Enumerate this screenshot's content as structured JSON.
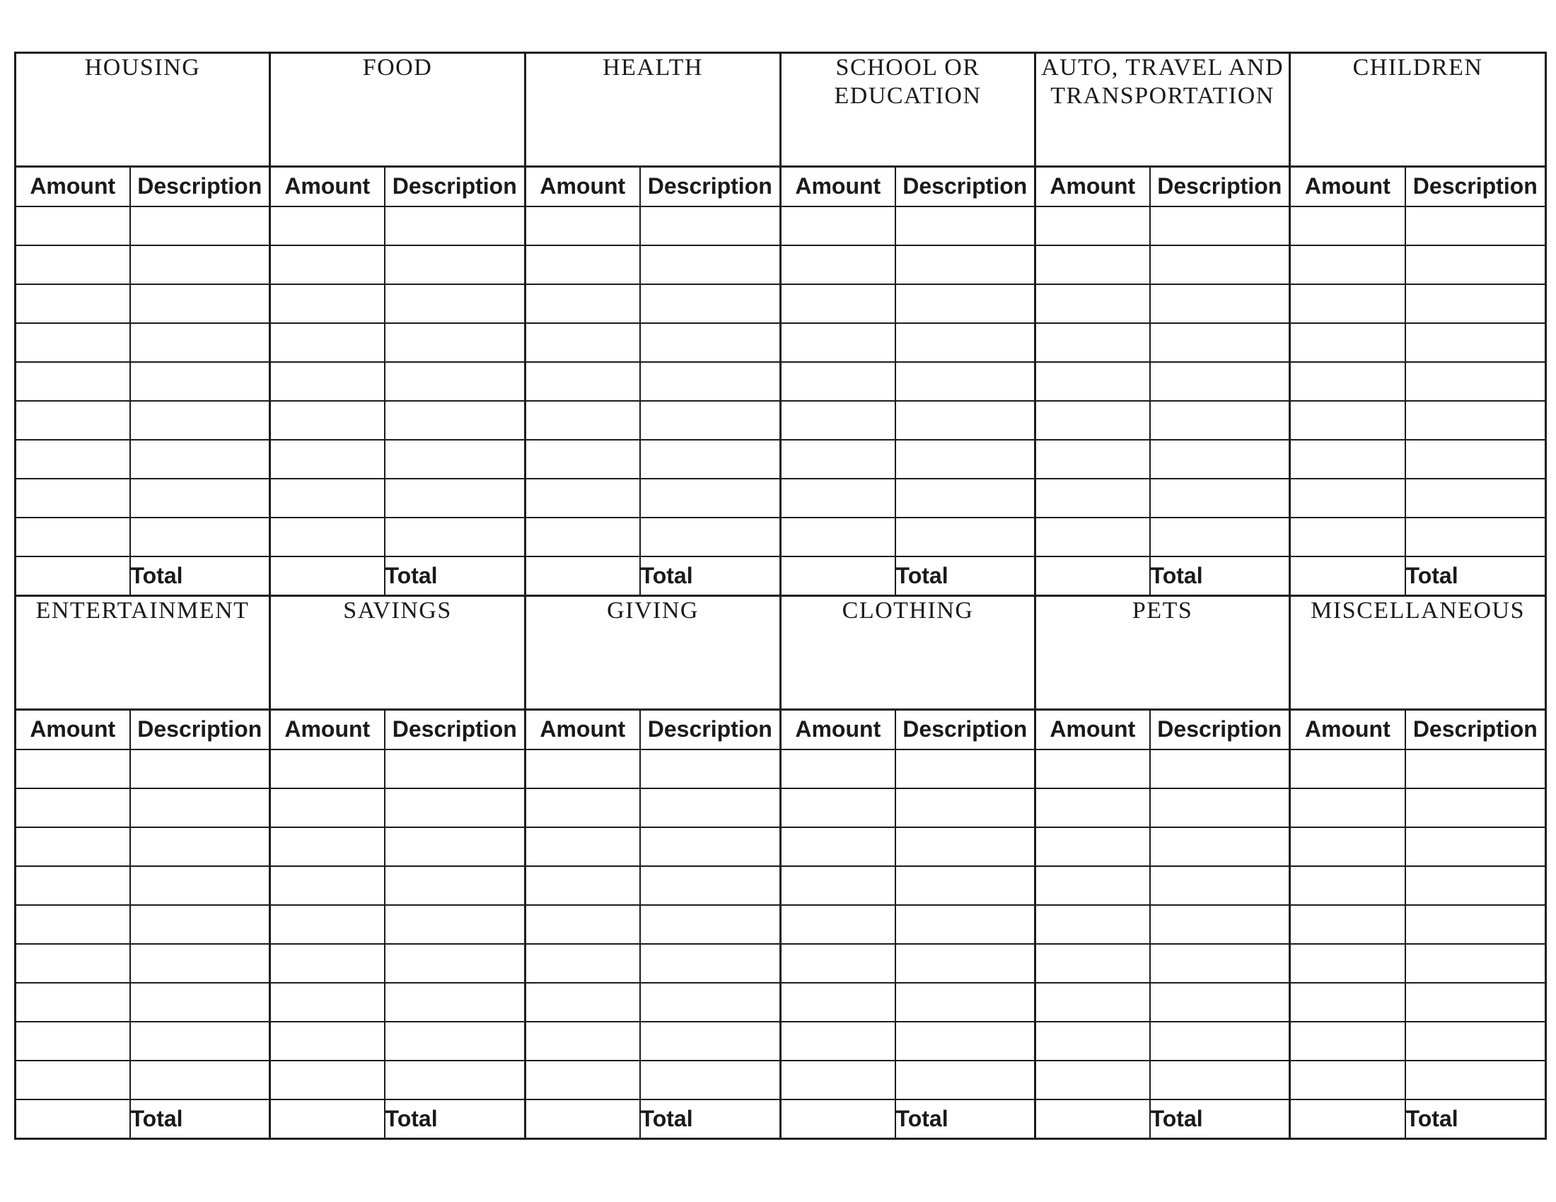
{
  "document": {
    "type": "budget-worksheet",
    "background": "#ffffff",
    "line_color": "#1c1c1c",
    "text_color": "#1a1a1a"
  },
  "labels": {
    "amount": "Amount",
    "description": "Description",
    "total": "Total"
  },
  "tables": [
    {
      "name": "top",
      "categories": [
        "HOUSING",
        "FOOD",
        "HEALTH",
        "SCHOOL OR EDUCATION",
        "AUTO, TRAVEL AND TRANSPORTATION",
        "CHILDREN"
      ],
      "empty_rows": 9
    },
    {
      "name": "bottom",
      "categories": [
        "ENTERTAINMENT",
        "SAVINGS",
        "GIVING",
        "CLOTHING",
        "PETS",
        "MISCELLANEOUS"
      ],
      "empty_rows": 9
    }
  ]
}
